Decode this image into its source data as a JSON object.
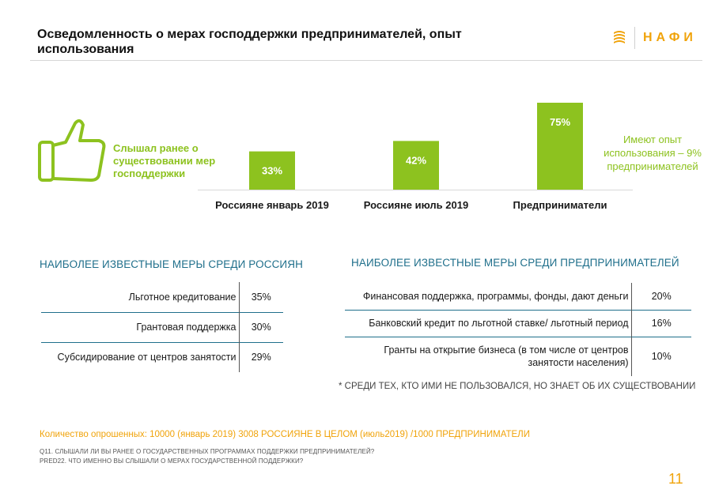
{
  "header": {
    "title": "Осведомленность о мерах господдержки предпринимателей, опыт использования",
    "logo_text": "НАФИ"
  },
  "thumb": {
    "icon": "thumbs-up-icon",
    "caption": "Слышал ранее о существовании мер господдержки"
  },
  "chart_data": {
    "type": "bar",
    "categories": [
      "Россияне январь 2019",
      "Россияне июль 2019",
      "Предприниматели"
    ],
    "values": [
      33,
      42,
      75
    ],
    "value_labels": [
      "33%",
      "42%",
      "75%"
    ],
    "ylim": [
      0,
      75
    ],
    "grid": false,
    "bar_color": "#8dc21f",
    "annotation": "Имеют опыт использования – 9% предпринимателей"
  },
  "left_table": {
    "title": "НАИБОЛЕЕ ИЗВЕСТНЫЕ МЕРЫ СРЕДИ РОССИЯН",
    "rows": [
      {
        "label": "Льготное кредитование",
        "value": "35%"
      },
      {
        "label": "Грантовая поддержка",
        "value": "30%"
      },
      {
        "label": "Субсидирование от центров занятости",
        "value": "29%"
      }
    ]
  },
  "right_table": {
    "title": "НАИБОЛЕЕ ИЗВЕСТНЫЕ МЕРЫ СРЕДИ ПРЕДПРИНИМАТЕЛЕЙ",
    "rows": [
      {
        "label": "Финансовая поддержка, программы, фонды, дают деньги",
        "value": "20%"
      },
      {
        "label": "Банковский кредит по льготной ставке/ льготный период",
        "value": "16%"
      },
      {
        "label": "Гранты на открытие бизнеса (в том числе от центров занятости населения)",
        "value": "10%"
      }
    ]
  },
  "footnote": "* СРЕДИ ТЕХ, КТО ИМИ НЕ ПОЛЬЗОВАЛСЯ, НО ЗНАЕТ ОБ ИХ СУЩЕСТВОВАНИИ",
  "sample": "Количество опрошенных: 10000 (январь 2019) 3008 РОССИЯНЕ В ЦЕЛОМ (июль2019) /1000 ПРЕДПРИНИМАТЕЛИ",
  "questions": [
    "Q11. СЛЫШАЛИ ЛИ ВЫ РАНЕЕ О ГОСУДАРСТВЕННЫХ ПРОГРАММАХ ПОДДЕРЖКИ ПРЕДПРИНИМАТЕЛЕЙ?",
    "PRED22. ЧТО ИМЕННО ВЫ СЛЫШАЛИ О МЕРАХ ГОСУДАРСТВЕННОЙ ПОДДЕРЖКИ?"
  ],
  "page_number": "11",
  "colors": {
    "green": "#8dc21f",
    "teal": "#1f6f8b",
    "orange": "#f0a30a"
  }
}
